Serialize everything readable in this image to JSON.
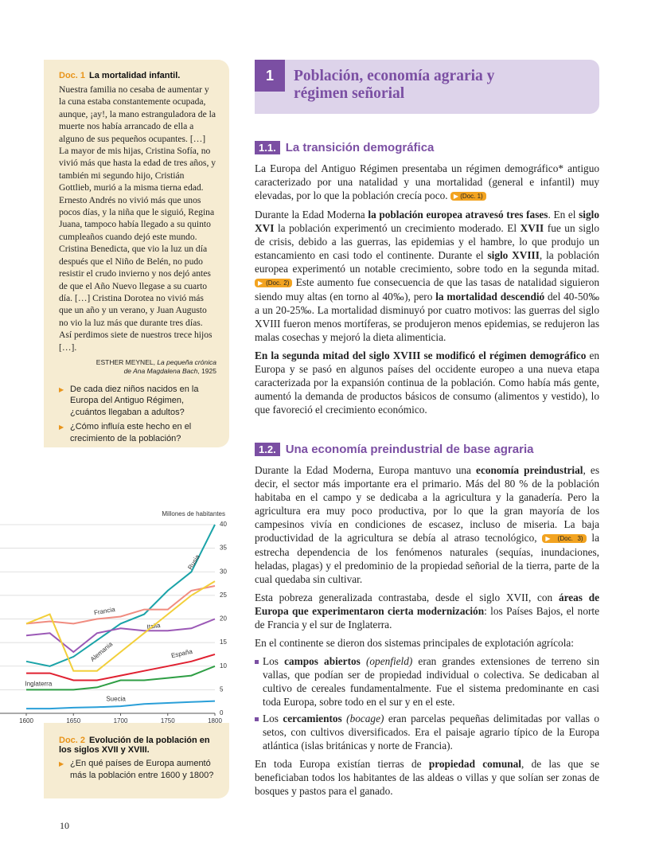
{
  "doc1": {
    "label": "Doc. 1",
    "title": "La mortalidad infantil.",
    "text": "Nuestra familia no cesaba de aumentar y la cuna estaba constantemente ocupada, aunque, ¡ay!, la mano estranguladora de la muerte nos había arrancado de ella a alguno de sus pequeños ocupantes. […] La mayor de mis hijas, Cristina Sofía, no vivió más que hasta la edad de tres años, y también mi segundo hijo, Cristián Gottlieb, murió a la misma tierna edad. Ernesto Andrés no vivió más que unos pocos días, y la niña que le siguió, Regina Juana, tampoco había llegado a su quinto cumpleaños cuando dejó este mundo. Cristina Benedicta, que vio la luz un día después que el Niño de Belén, no pudo resistir el crudo invierno y nos dejó antes de que el Año Nuevo llegase a su cuarto día. […] Cristina Dorotea no vivió más que un año y un verano, y Juan Augusto no vio la luz más que durante tres días. Así perdimos siete de nuestros trece hijos […].",
    "source": [
      "ESTHER MEYNEL, ",
      {
        "text": "La pequeña crónica de Ana Magdalena Bach",
        "style": "italic"
      },
      ", 1925"
    ],
    "questions": [
      "De cada diez niños nacidos en la Europa del Antiguo Régimen, ¿cuántos llegaban a adultos?",
      "¿Cómo influía este hecho en el crecimiento de la población?"
    ]
  },
  "chart_data": {
    "type": "line",
    "y_label": "Millones de habitantes",
    "x": [
      1600,
      1625,
      1650,
      1675,
      1700,
      1725,
      1750,
      1775,
      1800
    ],
    "xlim": [
      1600,
      1800
    ],
    "xticks": [
      1600,
      1650,
      1700,
      1750,
      1800
    ],
    "ylim": [
      0,
      40
    ],
    "yticks": [
      0,
      5,
      10,
      15,
      20,
      25,
      30,
      35,
      40
    ],
    "grid": true,
    "series": [
      {
        "name": "Rusia",
        "color": "#1aa3a8",
        "values": [
          11,
          10,
          12,
          15.5,
          19,
          21,
          26,
          30,
          40
        ]
      },
      {
        "name": "Francia",
        "color": "#f08c80",
        "values": [
          19,
          19.5,
          19,
          20,
          20.5,
          22,
          22,
          26,
          27
        ]
      },
      {
        "name": "Italia",
        "color": "#9b59b6",
        "values": [
          16.5,
          17,
          13,
          17,
          18,
          17.5,
          17.5,
          18,
          20
        ]
      },
      {
        "name": "Alemania",
        "color": "#f2cf3a",
        "values": [
          19,
          21,
          9,
          9,
          13,
          17,
          21,
          25,
          28
        ]
      },
      {
        "name": "España",
        "color": "#e02030",
        "values": [
          8.5,
          8.5,
          7,
          7,
          8,
          9,
          10,
          11,
          12.5
        ]
      },
      {
        "name": "Inglaterra",
        "color": "#2e9e44",
        "values": [
          5,
          5,
          5,
          5.5,
          7,
          7,
          7.5,
          8,
          10
        ]
      },
      {
        "name": "Suecia",
        "color": "#2a9fd8",
        "values": [
          1,
          1,
          1.2,
          1.3,
          1.5,
          2,
          2.2,
          2.4,
          2.6
        ]
      }
    ]
  },
  "doc2": {
    "label": "Doc. 2",
    "title": "Evolución de la población en los siglos XVII y XVIII.",
    "question": "¿En qué países de Europa aumentó más la población entre 1600 y 1800?"
  },
  "page_number": "10",
  "chapter": {
    "number": "1",
    "title": "Población, economía agraria y régimen señorial"
  },
  "sections": [
    {
      "number": "1.1.",
      "title": "La transición demográfica",
      "paragraphs": [
        [
          "La Europa del Antiguo Régimen presentaba un régimen demográfico* antiguo caracterizado por una natalidad y una mortalidad (general e infantil) muy elevadas, por lo que la población crecía poco. ",
          {
            "text": "(Doc. 1)",
            "style": "tag"
          }
        ],
        [
          "Durante la Edad Moderna ",
          {
            "text": "la población europea atravesó tres fases",
            "style": "bold"
          },
          ". En el ",
          {
            "text": "siglo XVI",
            "style": "bold"
          },
          " la población experimentó un crecimiento moderado. El ",
          {
            "text": "XVII",
            "style": "bold"
          },
          " fue un siglo de crisis, debido a las guerras, las epidemias y el hambre, lo que produjo un estancamiento en casi todo el continente. Durante el ",
          {
            "text": "siglo XVIII",
            "style": "bold"
          },
          ", la población europea experimentó un notable crecimiento, sobre todo en la segunda mitad. ",
          {
            "text": "(Doc. 2)",
            "style": "tag"
          },
          " Este aumento fue consecuencia de que las tasas de natalidad siguieron siendo muy altas (en torno al 40‰), pero ",
          {
            "text": "la mortalidad descendió",
            "style": "bold"
          },
          " del 40-50‰ a un 20-25‰. La mortalidad disminuyó por cuatro motivos: las guerras del siglo XVIII fueron menos mortíferas, se produjeron menos epidemias, se redujeron las malas cosechas y mejoró la dieta alimenticia."
        ],
        [
          {
            "text": "En la segunda mitad del siglo XVIII se modificó el régimen demográfico",
            "style": "bold"
          },
          " en Europa y se pasó en algunos países del occidente europeo a una nueva etapa caracterizada por la expansión continua de la población. Como había más gente, aumentó la demanda de productos básicos de consumo (alimentos y vestido), lo que favoreció el crecimiento económico."
        ]
      ]
    },
    {
      "number": "1.2.",
      "title": "Una economía preindustrial de base agraria",
      "paragraphs": [
        [
          "Durante la Edad Moderna, Europa mantuvo una ",
          {
            "text": "economía preindustrial",
            "style": "bold"
          },
          ", es decir, el sector más importante era el primario. Más del 80 % de la población habitaba en el campo y se dedicaba a la agricultura y la ganadería. Pero la agricultura era muy poco productiva, por lo que la gran mayoría de los campesinos vivía en condiciones de escasez, incluso de miseria. La baja productividad de la agricultura se debía al atraso tecnológico, ",
          {
            "text": "(Doc. 3)",
            "style": "tag"
          },
          " la estrecha dependencia de los fenómenos naturales (sequías, inundaciones, heladas, plagas) y el predominio de la propiedad señorial de la tierra, parte de la cual quedaba sin cultivar."
        ],
        [
          "Esta pobreza generalizada contrastaba, desde el siglo XVII, con ",
          {
            "text": "áreas de Europa que experimentaron cierta modernización",
            "style": "bold"
          },
          ": los Países Bajos, el norte de Francia y el sur de Inglaterra."
        ],
        [
          "En el continente se dieron dos sistemas principales de explotación agrícola:"
        ]
      ],
      "list": [
        [
          "Los ",
          {
            "text": "campos abiertos",
            "style": "bold"
          },
          " ",
          {
            "text": "(openfield)",
            "style": "italic"
          },
          " eran grandes extensiones de terreno sin vallas, que podían ser de propiedad individual o colectiva. Se dedicaban al cultivo de cereales fundamentalmente. Fue el sistema predominante en casi toda Europa, sobre todo en el sur y en el este."
        ],
        [
          "Los ",
          {
            "text": "cercamientos",
            "style": "bold"
          },
          " ",
          {
            "text": "(bocage)",
            "style": "italic"
          },
          " eran parcelas pequeñas delimitadas por vallas o setos, con cultivos diversificados. Era el paisaje agrario típico de la Europa atlántica (islas británicas y norte de Francia)."
        ]
      ],
      "closing": [
        [
          "En toda Europa existían tierras de ",
          {
            "text": "propiedad comunal",
            "style": "bold"
          },
          ", de las que se beneficiaban todos los habitantes de las aldeas o villas y que solían ser zonas de bosques y pastos para el ganado."
        ]
      ]
    }
  ]
}
